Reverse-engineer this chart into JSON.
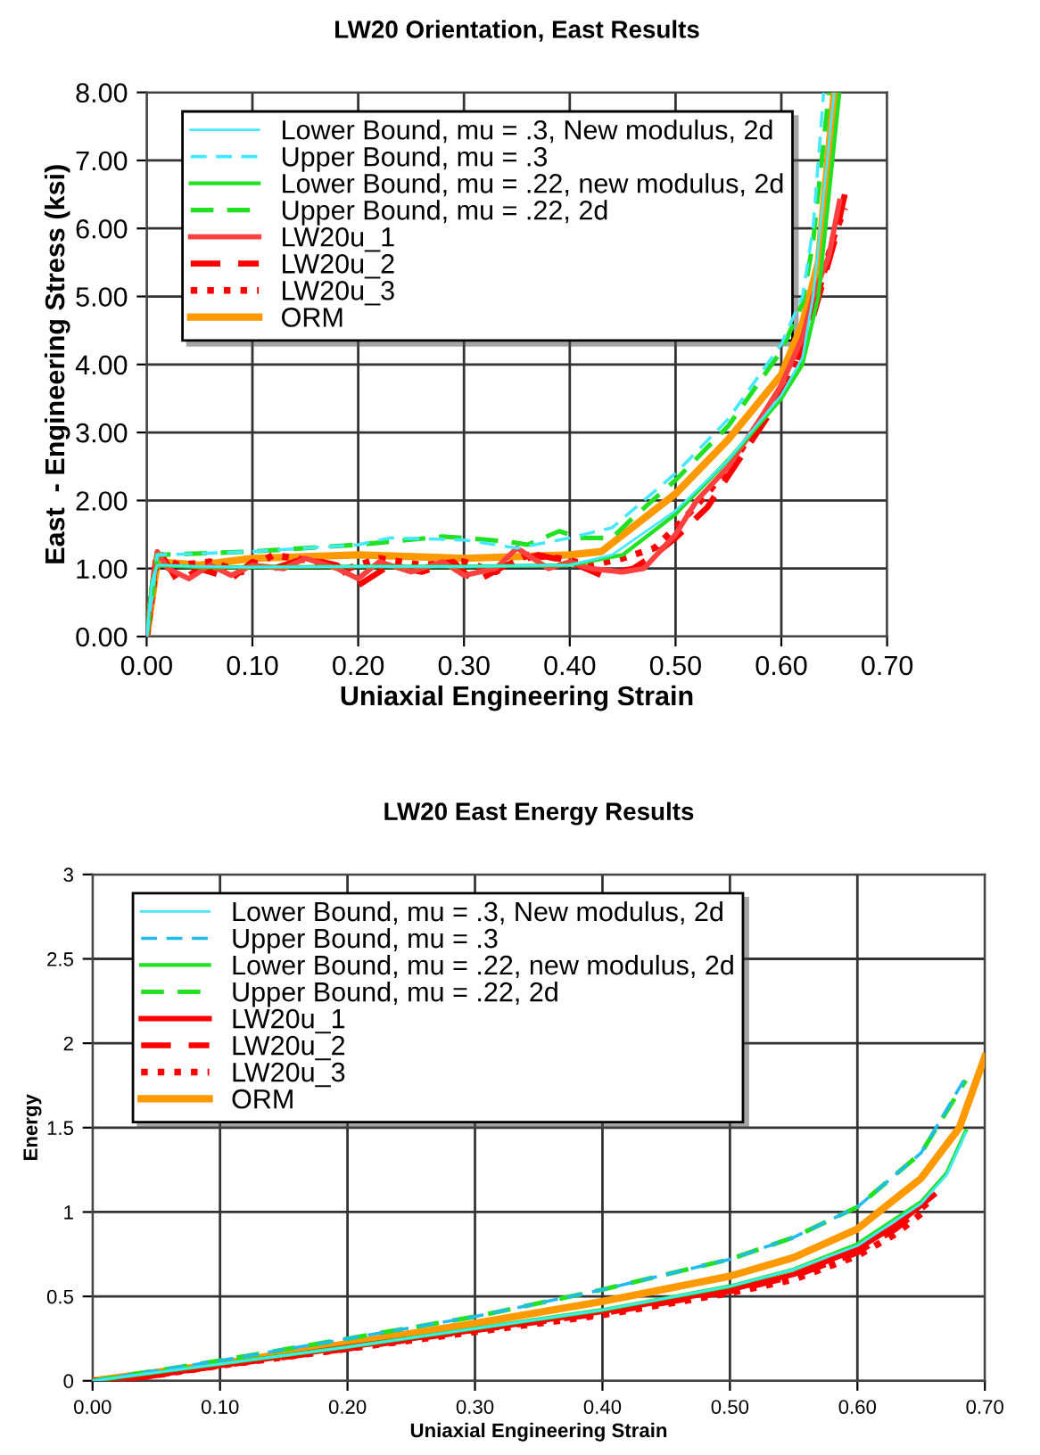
{
  "chart_data": [
    {
      "type": "line",
      "title": "LW20 Orientation, East Results",
      "xlabel": "Uniaxial Engineering Strain",
      "ylabel": "East  - Engineering Stress (ksi)",
      "xlim": [
        0,
        0.7
      ],
      "ylim": [
        0,
        8
      ],
      "xticks": [
        {
          "value": 0,
          "label": "0.00"
        },
        {
          "value": 0.1,
          "label": "0.10"
        },
        {
          "value": 0.2,
          "label": "0.20"
        },
        {
          "value": 0.3,
          "label": "0.30"
        },
        {
          "value": 0.4,
          "label": "0.40"
        },
        {
          "value": 0.5,
          "label": "0.50"
        },
        {
          "value": 0.6,
          "label": "0.60"
        },
        {
          "value": 0.7,
          "label": "0.70"
        }
      ],
      "yticks": [
        {
          "value": 0,
          "label": "0.00"
        },
        {
          "value": 1,
          "label": "1.00"
        },
        {
          "value": 2,
          "label": "2.00"
        },
        {
          "value": 3,
          "label": "3.00"
        },
        {
          "value": 4,
          "label": "4.00"
        },
        {
          "value": 5,
          "label": "5.00"
        },
        {
          "value": 6,
          "label": "6.00"
        },
        {
          "value": 7,
          "label": "7.00"
        },
        {
          "value": 8,
          "label": "8.00"
        }
      ],
      "grid": true,
      "legend": "top left",
      "marker": "none",
      "series": [
        {
          "name": "Lower Bound, mu = .3, New modulus, 2d",
          "color": "#44e8ff",
          "line_style": "solid",
          "x": [
            0,
            0.005,
            0.01,
            0.05,
            0.1,
            0.2,
            0.3,
            0.4,
            0.44,
            0.5,
            0.55,
            0.6,
            0.62,
            0.63,
            0.64,
            0.65
          ],
          "values": [
            0,
            0.8,
            1.05,
            1.03,
            1.02,
            1.03,
            1.03,
            1.05,
            1.2,
            1.85,
            2.6,
            3.55,
            4.1,
            5.0,
            6.5,
            8.0
          ]
        },
        {
          "name": "Upper Bound, mu = .3",
          "color": "#44e8ff",
          "line_style": "dashed",
          "x": [
            0,
            0.01,
            0.05,
            0.1,
            0.2,
            0.23,
            0.3,
            0.35,
            0.4,
            0.44,
            0.5,
            0.55,
            0.6,
            0.62,
            0.63,
            0.64
          ],
          "values": [
            0,
            1.2,
            1.22,
            1.25,
            1.35,
            1.45,
            1.42,
            1.3,
            1.45,
            1.6,
            2.4,
            3.2,
            4.3,
            5.0,
            6.0,
            8.0
          ]
        },
        {
          "name": "Lower Bound, mu = .22, new modulus, 2d",
          "color": "#22e022",
          "line_style": "solid",
          "x": [
            0,
            0.005,
            0.01,
            0.05,
            0.1,
            0.2,
            0.3,
            0.4,
            0.45,
            0.5,
            0.55,
            0.6,
            0.62,
            0.635,
            0.645,
            0.655
          ],
          "values": [
            0,
            0.8,
            1.05,
            1.02,
            1.02,
            1.03,
            1.03,
            1.05,
            1.2,
            1.8,
            2.6,
            3.5,
            4.0,
            5.0,
            6.5,
            8.0
          ]
        },
        {
          "name": "Upper Bound, mu = .22, 2d",
          "color": "#22e022",
          "line_style": "dashed",
          "x": [
            0,
            0.01,
            0.1,
            0.2,
            0.28,
            0.3,
            0.34,
            0.36,
            0.39,
            0.41,
            0.44,
            0.46,
            0.5,
            0.55,
            0.6,
            0.62,
            0.63,
            0.645
          ],
          "values": [
            0,
            1.2,
            1.25,
            1.35,
            1.47,
            1.45,
            1.4,
            1.35,
            1.55,
            1.45,
            1.45,
            1.75,
            2.3,
            3.1,
            4.2,
            4.9,
            5.8,
            8.0
          ]
        },
        {
          "name": "LW20u_1",
          "color": "#ff4040",
          "line_style": "solid",
          "x": [
            0,
            0.01,
            0.02,
            0.04,
            0.06,
            0.08,
            0.1,
            0.13,
            0.15,
            0.18,
            0.2,
            0.22,
            0.25,
            0.28,
            0.3,
            0.33,
            0.35,
            0.38,
            0.4,
            0.42,
            0.45,
            0.47,
            0.5,
            0.52,
            0.55,
            0.58,
            0.6,
            0.62,
            0.63,
            0.645,
            0.655
          ],
          "values": [
            0,
            1.25,
            1.0,
            0.85,
            1.05,
            0.9,
            1.05,
            1.0,
            1.15,
            1.0,
            0.85,
            1.1,
            0.95,
            1.1,
            0.9,
            1.0,
            1.3,
            1.0,
            1.1,
            1.0,
            0.95,
            1.0,
            1.5,
            2.0,
            2.5,
            3.2,
            3.7,
            4.4,
            5.0,
            5.6,
            6.4
          ]
        },
        {
          "name": "LW20u_2",
          "color": "#ff0000",
          "line_style": "dashed",
          "x": [
            0,
            0.01,
            0.03,
            0.05,
            0.08,
            0.1,
            0.12,
            0.15,
            0.18,
            0.2,
            0.23,
            0.26,
            0.29,
            0.31,
            0.34,
            0.37,
            0.4,
            0.43,
            0.46,
            0.48,
            0.5,
            0.53,
            0.56,
            0.59,
            0.61,
            0.63,
            0.65,
            0.66
          ],
          "values": [
            0,
            1.3,
            0.8,
            1.0,
            0.85,
            1.1,
            1.0,
            1.15,
            1.05,
            0.75,
            1.05,
            0.95,
            1.1,
            0.8,
            1.05,
            1.2,
            1.1,
            0.9,
            1.0,
            1.2,
            1.45,
            1.9,
            2.6,
            3.3,
            3.8,
            4.7,
            5.8,
            6.5
          ]
        },
        {
          "name": "LW20u_3",
          "color": "#ff0000",
          "line_style": "dotted",
          "x": [
            0,
            0.01,
            0.03,
            0.06,
            0.09,
            0.12,
            0.16,
            0.19,
            0.22,
            0.26,
            0.3,
            0.33,
            0.36,
            0.39,
            0.42,
            0.45,
            0.48,
            0.5,
            0.53,
            0.56,
            0.59,
            0.61,
            0.63,
            0.65,
            0.66
          ],
          "values": [
            0,
            1.2,
            1.05,
            1.1,
            0.95,
            1.2,
            1.1,
            1.0,
            1.15,
            1.05,
            1.1,
            0.95,
            1.2,
            1.15,
            1.05,
            1.15,
            1.3,
            1.6,
            2.1,
            2.7,
            3.4,
            3.9,
            4.8,
            5.9,
            6.3
          ]
        },
        {
          "name": "ORM",
          "color": "#ff9900",
          "line_style": "solid",
          "x": [
            0,
            0.01,
            0.05,
            0.1,
            0.2,
            0.3,
            0.4,
            0.43,
            0.5,
            0.55,
            0.6,
            0.62,
            0.635,
            0.65
          ],
          "values": [
            0,
            1.1,
            1.05,
            1.15,
            1.2,
            1.15,
            1.2,
            1.25,
            2.1,
            2.9,
            3.85,
            4.6,
            5.5,
            8.0
          ]
        }
      ]
    },
    {
      "type": "line",
      "title": "LW20 East Energy Results",
      "xlabel": "Uniaxial Engineering Strain",
      "ylabel": "Energy",
      "xlim": [
        0,
        0.7
      ],
      "ylim": [
        0,
        3
      ],
      "xticks": [
        {
          "value": 0,
          "label": "0.00"
        },
        {
          "value": 0.1,
          "label": "0.10"
        },
        {
          "value": 0.2,
          "label": "0.20"
        },
        {
          "value": 0.3,
          "label": "0.30"
        },
        {
          "value": 0.4,
          "label": "0.40"
        },
        {
          "value": 0.5,
          "label": "0.50"
        },
        {
          "value": 0.6,
          "label": "0.60"
        },
        {
          "value": 0.7,
          "label": "0.70"
        }
      ],
      "yticks": [
        0,
        0.5,
        1,
        1.5,
        2,
        2.5,
        3
      ],
      "grid": true,
      "legend": "top left",
      "marker": "none",
      "series": [
        {
          "name": "Lower Bound, mu = .3, New modulus, 2d",
          "color": "#44e8ff",
          "line_style": "solid",
          "x": [
            0,
            0.1,
            0.2,
            0.3,
            0.4,
            0.5,
            0.55,
            0.6,
            0.65,
            0.67,
            0.685
          ],
          "values": [
            0,
            0.1,
            0.2,
            0.31,
            0.42,
            0.56,
            0.66,
            0.8,
            1.05,
            1.22,
            1.47
          ]
        },
        {
          "name": "Upper Bound, mu = .3",
          "color": "#22bbee",
          "line_style": "dashed",
          "x": [
            0,
            0.1,
            0.2,
            0.3,
            0.4,
            0.5,
            0.55,
            0.6,
            0.65,
            0.685
          ],
          "values": [
            0,
            0.12,
            0.25,
            0.38,
            0.54,
            0.72,
            0.85,
            1.03,
            1.35,
            1.8
          ]
        },
        {
          "name": "Lower Bound, mu = .22, new modulus, 2d",
          "color": "#22e022",
          "line_style": "solid",
          "x": [
            0,
            0.1,
            0.2,
            0.3,
            0.4,
            0.5,
            0.55,
            0.6,
            0.65,
            0.67,
            0.685
          ],
          "values": [
            0,
            0.1,
            0.2,
            0.31,
            0.42,
            0.56,
            0.66,
            0.81,
            1.06,
            1.23,
            1.48
          ]
        },
        {
          "name": "Upper Bound, mu = .22, 2d",
          "color": "#22e022",
          "line_style": "dashed",
          "x": [
            0,
            0.1,
            0.2,
            0.3,
            0.4,
            0.5,
            0.55,
            0.6,
            0.65,
            0.685
          ],
          "values": [
            0,
            0.12,
            0.25,
            0.38,
            0.54,
            0.72,
            0.85,
            1.03,
            1.35,
            1.78
          ]
        },
        {
          "name": "LW20u_1",
          "color": "#ff0000",
          "line_style": "solid",
          "x": [
            0,
            0.02,
            0.1,
            0.2,
            0.3,
            0.4,
            0.5,
            0.55,
            0.6,
            0.63,
            0.66
          ],
          "values": [
            0,
            0.0,
            0.09,
            0.2,
            0.3,
            0.41,
            0.54,
            0.63,
            0.78,
            0.92,
            1.1
          ]
        },
        {
          "name": "LW20u_2",
          "color": "#ff0000",
          "line_style": "dashed",
          "x": [
            0,
            0.02,
            0.1,
            0.2,
            0.3,
            0.4,
            0.5,
            0.55,
            0.6,
            0.63,
            0.655
          ],
          "values": [
            0,
            0.0,
            0.09,
            0.19,
            0.3,
            0.4,
            0.53,
            0.62,
            0.76,
            0.9,
            1.05
          ]
        },
        {
          "name": "LW20u_3",
          "color": "#ff0000",
          "line_style": "dotted",
          "x": [
            0,
            0.02,
            0.1,
            0.2,
            0.3,
            0.4,
            0.5,
            0.55,
            0.6,
            0.63,
            0.655
          ],
          "values": [
            0,
            0.0,
            0.09,
            0.19,
            0.29,
            0.39,
            0.52,
            0.6,
            0.74,
            0.87,
            1.02
          ]
        },
        {
          "name": "ORM",
          "color": "#ff9900",
          "line_style": "solid",
          "x": [
            0,
            0.1,
            0.2,
            0.3,
            0.4,
            0.5,
            0.55,
            0.6,
            0.65,
            0.68,
            0.7
          ],
          "values": [
            0,
            0.1,
            0.22,
            0.34,
            0.47,
            0.62,
            0.73,
            0.9,
            1.2,
            1.5,
            1.92
          ]
        }
      ]
    }
  ]
}
